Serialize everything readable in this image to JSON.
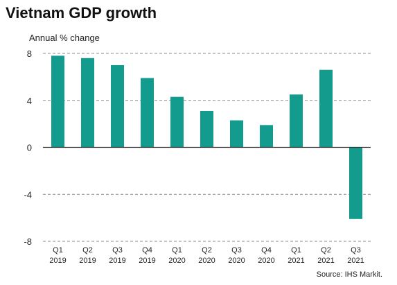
{
  "chart_data": {
    "type": "bar",
    "title": "Vietnam GDP growth",
    "ylabel": "Annual % change",
    "xlabel": "",
    "source": "Source: IHS Markit.",
    "categories": [
      {
        "q": "Q1",
        "year": "2019"
      },
      {
        "q": "Q2",
        "year": "2019"
      },
      {
        "q": "Q3",
        "year": "2019"
      },
      {
        "q": "Q4",
        "year": "2019"
      },
      {
        "q": "Q1",
        "year": "2020"
      },
      {
        "q": "Q2",
        "year": "2020"
      },
      {
        "q": "Q3",
        "year": "2020"
      },
      {
        "q": "Q4",
        "year": "2020"
      },
      {
        "q": "Q1",
        "year": "2021"
      },
      {
        "q": "Q2",
        "year": "2021"
      },
      {
        "q": "Q3",
        "year": "2021"
      }
    ],
    "values": [
      7.8,
      7.6,
      7.0,
      5.9,
      4.3,
      3.1,
      2.3,
      1.9,
      4.5,
      6.6,
      -6.1
    ],
    "ylim": [
      -8,
      8
    ],
    "yticks": [
      8,
      4,
      0,
      -4,
      -8
    ],
    "grid": true,
    "bar_color": "#139c8e",
    "grid_color": "#8a8a8a",
    "axis_color": "#333333"
  }
}
